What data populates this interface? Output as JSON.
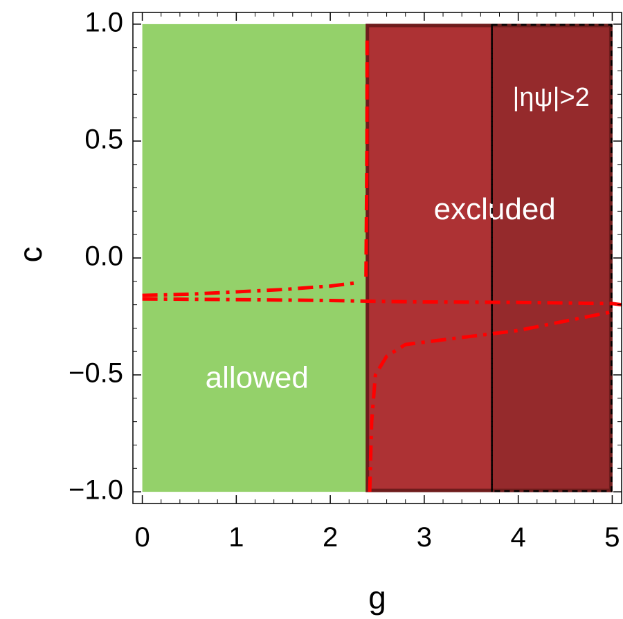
{
  "chart_data": {
    "type": "area",
    "title": "",
    "xlabel": "g",
    "ylabel": "c",
    "xlim": [
      -0.1,
      5.1
    ],
    "ylim": [
      -1.05,
      1.05
    ],
    "x_ticks": [
      {
        "value": 0,
        "label": "0"
      },
      {
        "value": 1,
        "label": "1"
      },
      {
        "value": 2,
        "label": "2"
      },
      {
        "value": 3,
        "label": "3"
      },
      {
        "value": 4,
        "label": "4"
      },
      {
        "value": 5,
        "label": "5"
      }
    ],
    "y_ticks": [
      {
        "value": 1.0,
        "label": "1.0"
      },
      {
        "value": 0.5,
        "label": "0.5"
      },
      {
        "value": 0.0,
        "label": "0.0"
      },
      {
        "value": -0.5,
        "label": "−0.5"
      },
      {
        "value": -1.0,
        "label": "−1.0"
      }
    ],
    "grid": false,
    "regions": [
      {
        "label": "allowed",
        "g_range": [
          0,
          2.38
        ],
        "c_range": [
          -1.0,
          1.0
        ],
        "color": "#94d16a",
        "label_at": [
          1.22,
          -0.52
        ]
      },
      {
        "label": "excluded",
        "g_range": [
          2.38,
          5.0
        ],
        "c_range": [
          -1.0,
          1.0
        ],
        "color": "#ad3234",
        "label_at": [
          3.75,
          0.2
        ]
      },
      {
        "label": "|ηψ|>2",
        "g_range": [
          3.72,
          5.0
        ],
        "c_range": [
          -1.0,
          1.0
        ],
        "color": "#952a2c",
        "label_at": [
          4.35,
          0.68
        ]
      }
    ],
    "vertical_lines": [
      {
        "x": 3.72,
        "style": "dashed",
        "color": "#000000"
      }
    ],
    "series": [
      {
        "style": "dash-dot",
        "color": "#ff0000",
        "points": [
          [
            0,
            -0.16
          ],
          [
            0.5,
            -0.155
          ],
          [
            1.0,
            -0.145
          ],
          [
            1.5,
            -0.135
          ],
          [
            2.0,
            -0.12
          ],
          [
            2.3,
            -0.105
          ]
        ]
      },
      {
        "style": "dash-dot",
        "color": "#ff0000",
        "points": [
          [
            0,
            -0.175
          ],
          [
            1.0,
            -0.178
          ],
          [
            2.0,
            -0.182
          ],
          [
            2.4,
            -0.185
          ],
          [
            3.0,
            -0.188
          ],
          [
            4.0,
            -0.19
          ],
          [
            5.0,
            -0.195
          ],
          [
            5.1,
            -0.2
          ]
        ]
      },
      {
        "style": "dashed",
        "color": "#ff0000",
        "points": [
          [
            2.38,
            -0.08
          ],
          [
            2.385,
            0.2
          ],
          [
            2.39,
            0.5
          ],
          [
            2.392,
            0.93
          ]
        ]
      },
      {
        "style": "dash-dot",
        "color": "#ff0000",
        "points": [
          [
            2.42,
            -1.0
          ],
          [
            2.44,
            -0.7
          ],
          [
            2.48,
            -0.5
          ],
          [
            2.6,
            -0.42
          ],
          [
            2.8,
            -0.37
          ],
          [
            3.2,
            -0.35
          ],
          [
            3.6,
            -0.33
          ],
          [
            4.0,
            -0.31
          ],
          [
            4.5,
            -0.27
          ],
          [
            5.0,
            -0.23
          ]
        ]
      }
    ]
  }
}
